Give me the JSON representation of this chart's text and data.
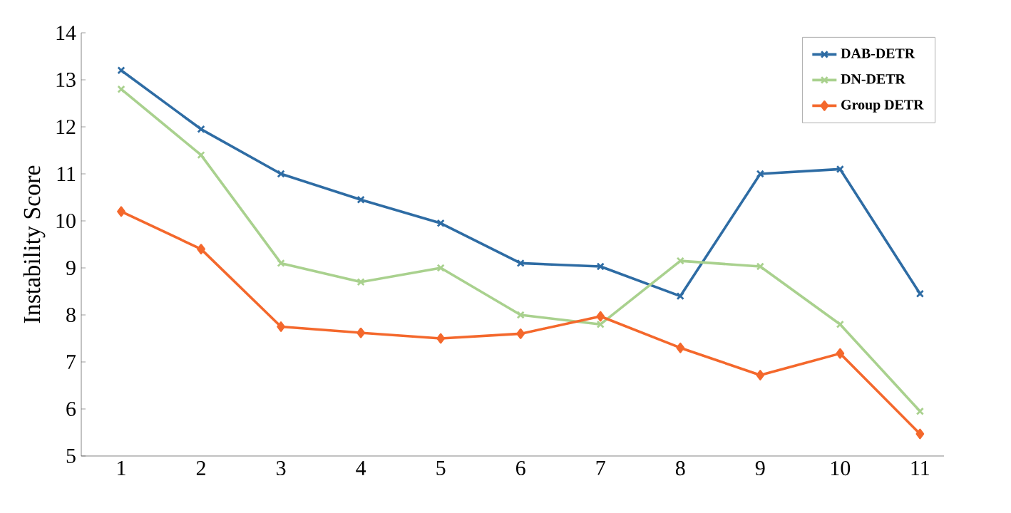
{
  "chart_data": {
    "type": "line",
    "ylabel": "Instability Score",
    "categories": [
      "1",
      "2",
      "3",
      "4",
      "5",
      "6",
      "7",
      "8",
      "9",
      "10",
      "11"
    ],
    "series": [
      {
        "name": "DAB-DETR",
        "color": "#2e6ca4",
        "marker": "cross",
        "values": [
          13.2,
          11.95,
          11.0,
          10.45,
          9.95,
          9.1,
          9.03,
          8.4,
          11.0,
          11.1,
          8.45
        ]
      },
      {
        "name": "DN-DETR",
        "color": "#a9d18e",
        "marker": "cross",
        "values": [
          12.8,
          11.4,
          9.1,
          8.7,
          9.0,
          8.0,
          7.8,
          9.15,
          9.03,
          7.8,
          5.95
        ]
      },
      {
        "name": "Group DETR",
        "color": "#f4682c",
        "marker": "diamond",
        "values": [
          10.2,
          9.4,
          7.75,
          7.62,
          7.5,
          7.6,
          7.97,
          7.3,
          6.72,
          7.18,
          5.47
        ]
      }
    ],
    "ylim": [
      5,
      14
    ],
    "yticks": [
      5,
      6,
      7,
      8,
      9,
      10,
      11,
      12,
      13,
      14
    ],
    "grid": false,
    "legend": "top right",
    "line_style": "solid"
  }
}
